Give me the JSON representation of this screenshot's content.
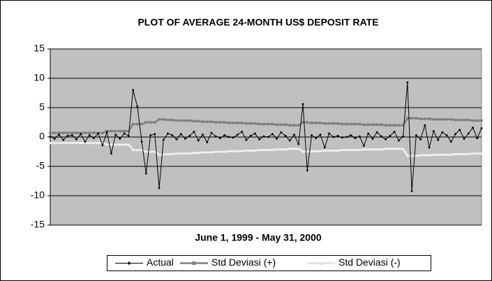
{
  "chart_data": {
    "type": "line",
    "title": "PLOT OF AVERAGE 24-MONTH US$ DEPOSIT RATE",
    "x_label": "June 1, 1999 - May 31, 2000",
    "ylim": [
      -15,
      15
    ],
    "yticks": [
      -15,
      -10,
      -5,
      0,
      5,
      10,
      15
    ],
    "grid": true,
    "legend": "bottom",
    "series": [
      {
        "name": "Actual",
        "color": "#000000",
        "marker": "diamond",
        "values": [
          0.1,
          -0.3,
          0.4,
          -0.5,
          0.2,
          0.3,
          -0.4,
          0.5,
          -0.8,
          0.3,
          -0.2,
          0.6,
          -1.4,
          0.8,
          -2.8,
          0.4,
          -0.3,
          0.6,
          0.2,
          8.0,
          5.2,
          -0.8,
          -6.2,
          0.3,
          0.5,
          -8.7,
          -0.5,
          0.6,
          0.3,
          -0.4,
          0.5,
          -0.3,
          0.2,
          0.9,
          -0.6,
          0.4,
          -0.9,
          0.7,
          0.1,
          -0.2,
          0.3,
          0.0,
          -0.1,
          0.4,
          0.9,
          -0.5,
          0.2,
          0.6,
          -0.4,
          0.1,
          0.0,
          0.5,
          -0.3,
          0.8,
          0.2,
          -0.6,
          0.4,
          -1.2,
          5.6,
          -5.7,
          0.3,
          -0.2,
          0.4,
          -1.8,
          0.6,
          0.0,
          0.2,
          -0.1,
          0.0,
          0.3,
          -0.2,
          0.1,
          -1.5,
          0.6,
          -0.3,
          0.8,
          0.1,
          -0.4,
          0.2,
          0.9,
          -0.6,
          0.1,
          9.3,
          -9.2,
          0.3,
          -0.4,
          2.0,
          -1.8,
          1.0,
          -0.5,
          0.8,
          0.3,
          -0.8,
          0.5,
          1.2,
          -0.3,
          0.6,
          1.6,
          -0.2,
          1.5
        ]
      },
      {
        "name": "Std Deviasi (+)",
        "color": "#808080",
        "marker": "square",
        "values": [
          0.7,
          0.7,
          0.7,
          0.7,
          0.7,
          0.7,
          0.7,
          0.7,
          0.7,
          0.7,
          0.7,
          0.7,
          0.7,
          1.0,
          1.0,
          1.0,
          1.0,
          1.0,
          1.0,
          2.2,
          2.2,
          2.2,
          2.5,
          2.5,
          2.5,
          3.0,
          3.0,
          2.9,
          2.9,
          2.8,
          2.8,
          2.8,
          2.8,
          2.7,
          2.7,
          2.6,
          2.6,
          2.6,
          2.5,
          2.5,
          2.5,
          2.4,
          2.4,
          2.4,
          2.4,
          2.3,
          2.3,
          2.3,
          2.2,
          2.2,
          2.2,
          2.2,
          2.1,
          2.1,
          2.1,
          2.0,
          2.0,
          2.0,
          2.5,
          2.5,
          2.4,
          2.4,
          2.4,
          2.3,
          2.3,
          2.3,
          2.3,
          2.2,
          2.2,
          2.2,
          2.2,
          2.2,
          2.1,
          2.1,
          2.1,
          2.1,
          2.1,
          2.0,
          2.0,
          2.0,
          2.0,
          2.0,
          3.2,
          3.2,
          3.2,
          3.1,
          3.1,
          3.1,
          3.0,
          3.0,
          3.0,
          3.0,
          3.0,
          2.9,
          2.9,
          2.9,
          2.9,
          2.8,
          2.8,
          2.8
        ]
      },
      {
        "name": "Std Deviasi (-)",
        "color": "#f0f0f0",
        "marker": "triangle",
        "values": [
          -1.0,
          -1.0,
          -1.0,
          -1.0,
          -1.0,
          -1.0,
          -1.0,
          -1.0,
          -1.0,
          -1.0,
          -1.0,
          -1.0,
          -1.0,
          -1.3,
          -1.3,
          -1.3,
          -1.3,
          -1.3,
          -1.3,
          -2.2,
          -2.2,
          -2.2,
          -2.5,
          -2.5,
          -2.5,
          -3.0,
          -3.0,
          -2.9,
          -2.9,
          -2.8,
          -2.8,
          -2.8,
          -2.8,
          -2.7,
          -2.7,
          -2.6,
          -2.6,
          -2.6,
          -2.5,
          -2.5,
          -2.5,
          -2.4,
          -2.4,
          -2.4,
          -2.4,
          -2.3,
          -2.3,
          -2.3,
          -2.2,
          -2.2,
          -2.2,
          -2.2,
          -2.1,
          -2.1,
          -2.1,
          -2.0,
          -2.0,
          -2.0,
          -2.5,
          -2.5,
          -2.4,
          -2.4,
          -2.4,
          -2.3,
          -2.3,
          -2.3,
          -2.3,
          -2.2,
          -2.2,
          -2.2,
          -2.2,
          -2.2,
          -2.1,
          -2.1,
          -2.1,
          -2.1,
          -2.1,
          -2.0,
          -2.0,
          -2.0,
          -2.0,
          -2.0,
          -3.2,
          -3.2,
          -3.2,
          -3.1,
          -3.1,
          -3.1,
          -3.0,
          -3.0,
          -3.0,
          -3.0,
          -3.0,
          -2.9,
          -2.9,
          -2.9,
          -2.9,
          -2.8,
          -2.8,
          -2.8
        ]
      }
    ]
  }
}
